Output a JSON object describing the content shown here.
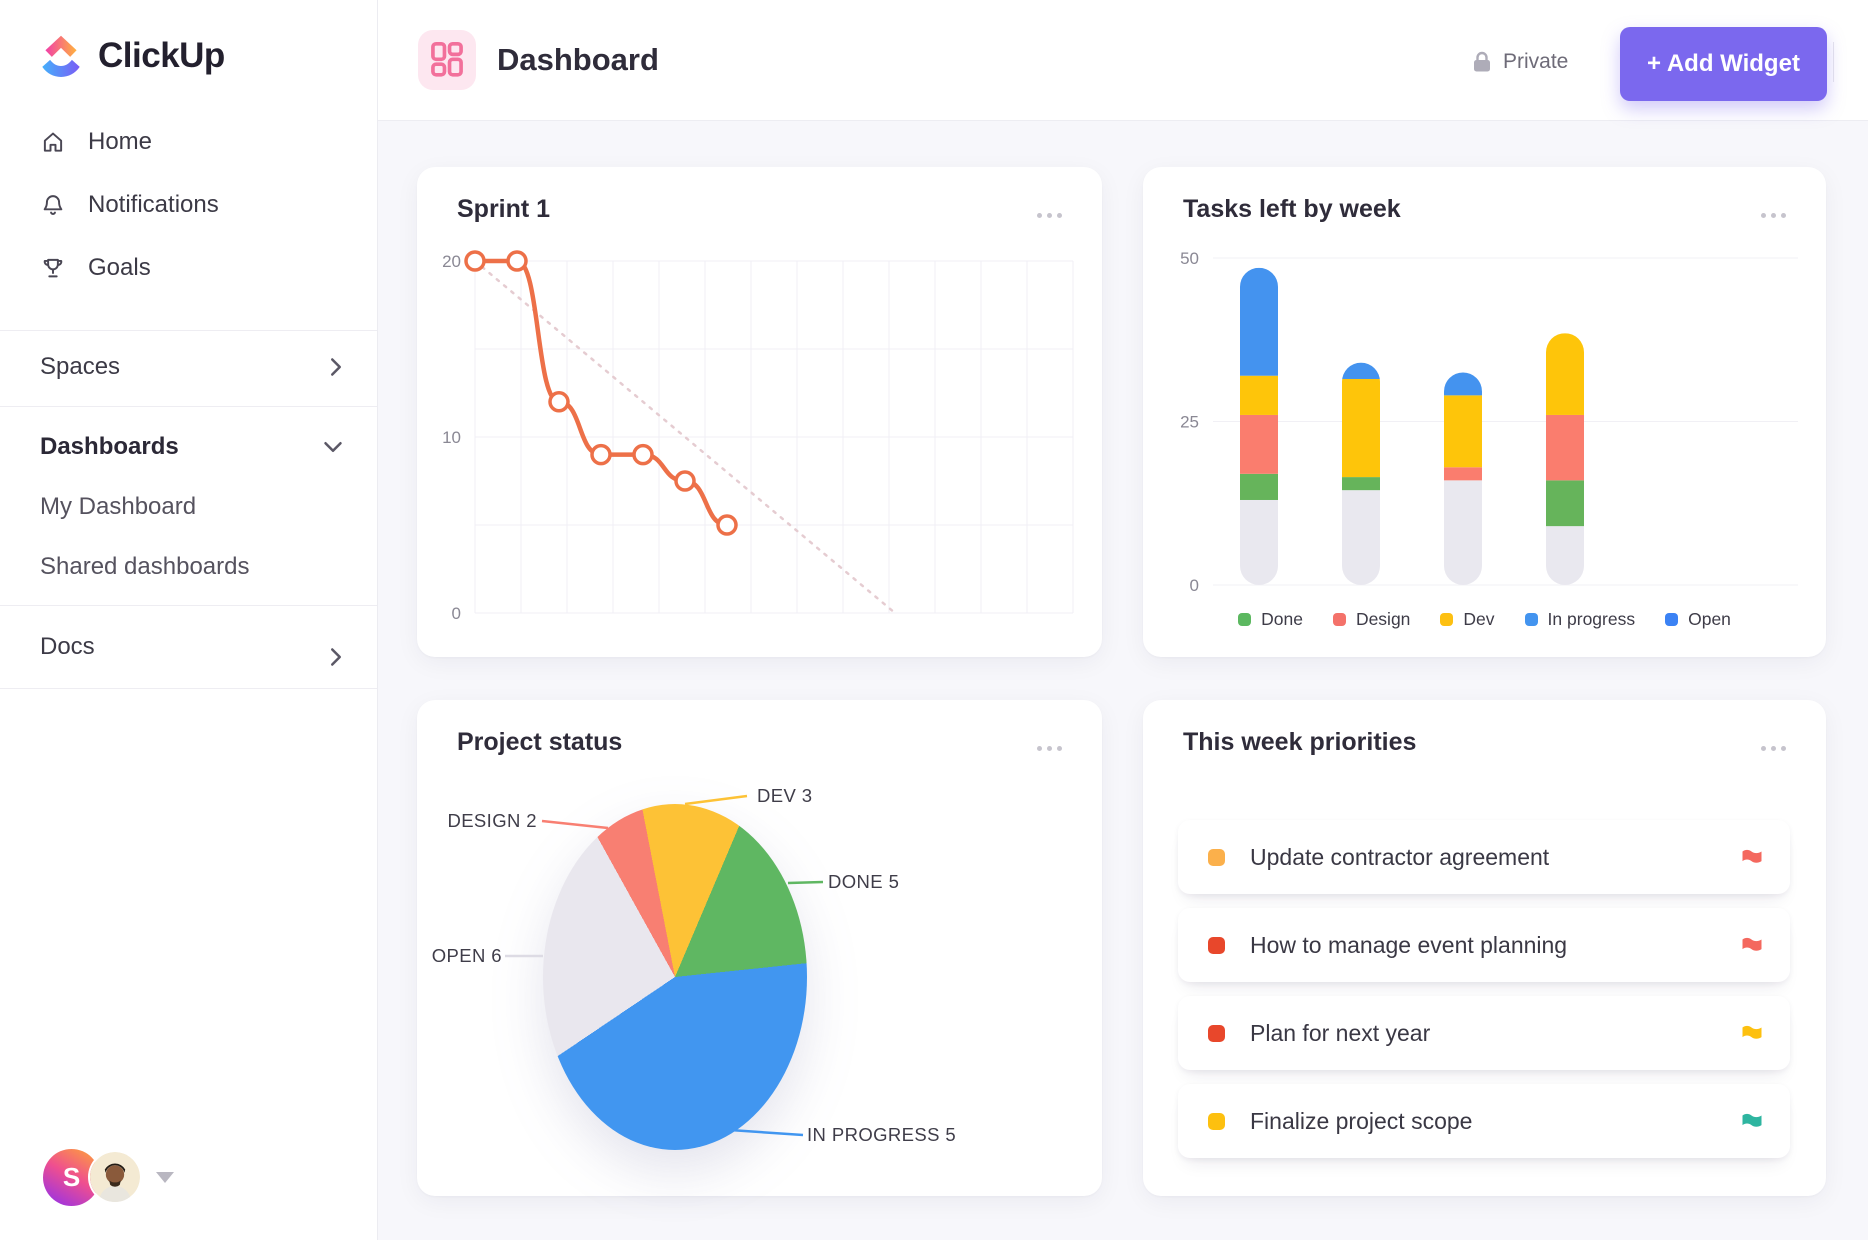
{
  "app": {
    "logo_text": "ClickUp"
  },
  "sidebar": {
    "nav": [
      {
        "label": "Home"
      },
      {
        "label": "Notifications"
      },
      {
        "label": "Goals"
      }
    ],
    "spaces_label": "Spaces",
    "dashboards_label": "Dashboards",
    "dashboard_items": [
      {
        "label": "My Dashboard"
      },
      {
        "label": "Shared dashboards"
      }
    ],
    "docs_label": "Docs",
    "user": {
      "initial": "S"
    }
  },
  "header": {
    "title": "Dashboard",
    "privacy_label": "Private",
    "add_widget_label": "+ Add Widget",
    "accent_color": "#7b68ee"
  },
  "widgets": {
    "priorities": {
      "title": "This week priorities",
      "items": [
        {
          "text": "Update contractor agreement",
          "bullet_color": "#fbb04b",
          "flag_color": "#f4685e"
        },
        {
          "text": "How to manage event planning",
          "bullet_color": "#e8472b",
          "flag_color": "#f4685e"
        },
        {
          "text": "Plan for next year",
          "bullet_color": "#e8472b",
          "flag_color": "#fdc00f"
        },
        {
          "text": "Finalize project scope",
          "bullet_color": "#fdc00f",
          "flag_color": "#2eb5a0"
        }
      ]
    }
  },
  "chart_data": [
    {
      "id": "sprint-burndown",
      "type": "line",
      "title": "Sprint 1",
      "ylim": [
        0,
        20
      ],
      "yticks": [
        0,
        10,
        20
      ],
      "grid_rows": [
        0,
        5,
        10,
        15,
        20
      ],
      "grid_columns": 13,
      "series": [
        {
          "name": "remaining",
          "color": "#ed7048",
          "x": [
            0,
            1,
            2,
            3,
            4,
            5,
            6
          ],
          "values": [
            20,
            20,
            12,
            9,
            9,
            7.5,
            5
          ]
        },
        {
          "name": "ideal",
          "style": "dotted",
          "color": "#e5ccd1",
          "from": [
            0,
            20
          ],
          "to": [
            10,
            0
          ]
        }
      ]
    },
    {
      "id": "tasks-left-by-week",
      "type": "stacked-bar",
      "title": "Tasks left by week",
      "ylim": [
        0,
        50
      ],
      "yticks": [
        0,
        25,
        50
      ],
      "segment_order": [
        "base",
        "done",
        "design",
        "dev",
        "open"
      ],
      "segment_colors": {
        "base": "#e9e8ef",
        "done": "#66b45b",
        "design": "#fa7d6e",
        "dev": "#fec50a",
        "open": "#4493ef"
      },
      "bars": [
        {
          "base": 13,
          "done": 4,
          "design": 9,
          "dev": 6,
          "open": 16.5
        },
        {
          "base": 14.5,
          "done": 2,
          "design": 0,
          "dev": 15,
          "open": 2.5
        },
        {
          "base": 16,
          "done": 0,
          "design": 2,
          "dev": 11,
          "open": 3.5
        },
        {
          "base": 9,
          "done": 7,
          "design": 10,
          "dev": 12.5,
          "open": 0
        }
      ],
      "legend": [
        {
          "label": "Done",
          "color": "#5cb860"
        },
        {
          "label": "Design",
          "color": "#f4726a"
        },
        {
          "label": "Dev",
          "color": "#fdc012"
        },
        {
          "label": "In progress",
          "color": "#4394ef"
        },
        {
          "label": "Open",
          "color": "#3b82f4"
        }
      ]
    },
    {
      "id": "project-status",
      "type": "pie",
      "title": "Project status",
      "start_deg": -11,
      "slices": [
        {
          "label": "DEV 3",
          "name": "Dev",
          "value": 3,
          "color": "#fdc236",
          "visual_deg": 34
        },
        {
          "label": "DONE 5",
          "name": "Done",
          "value": 5,
          "color": "#5fb762",
          "visual_deg": 61
        },
        {
          "label": "IN PROGRESS 5",
          "name": "In progress",
          "value": 5,
          "color": "#4196f0",
          "visual_deg": 152
        },
        {
          "label": "OPEN 6",
          "name": "Open",
          "value": 6,
          "color": "#e9e7ee",
          "visual_deg": 95
        },
        {
          "label": "DESIGN 2",
          "name": "Design",
          "value": 2,
          "color": "#f87f72",
          "visual_deg": 18
        }
      ]
    }
  ]
}
